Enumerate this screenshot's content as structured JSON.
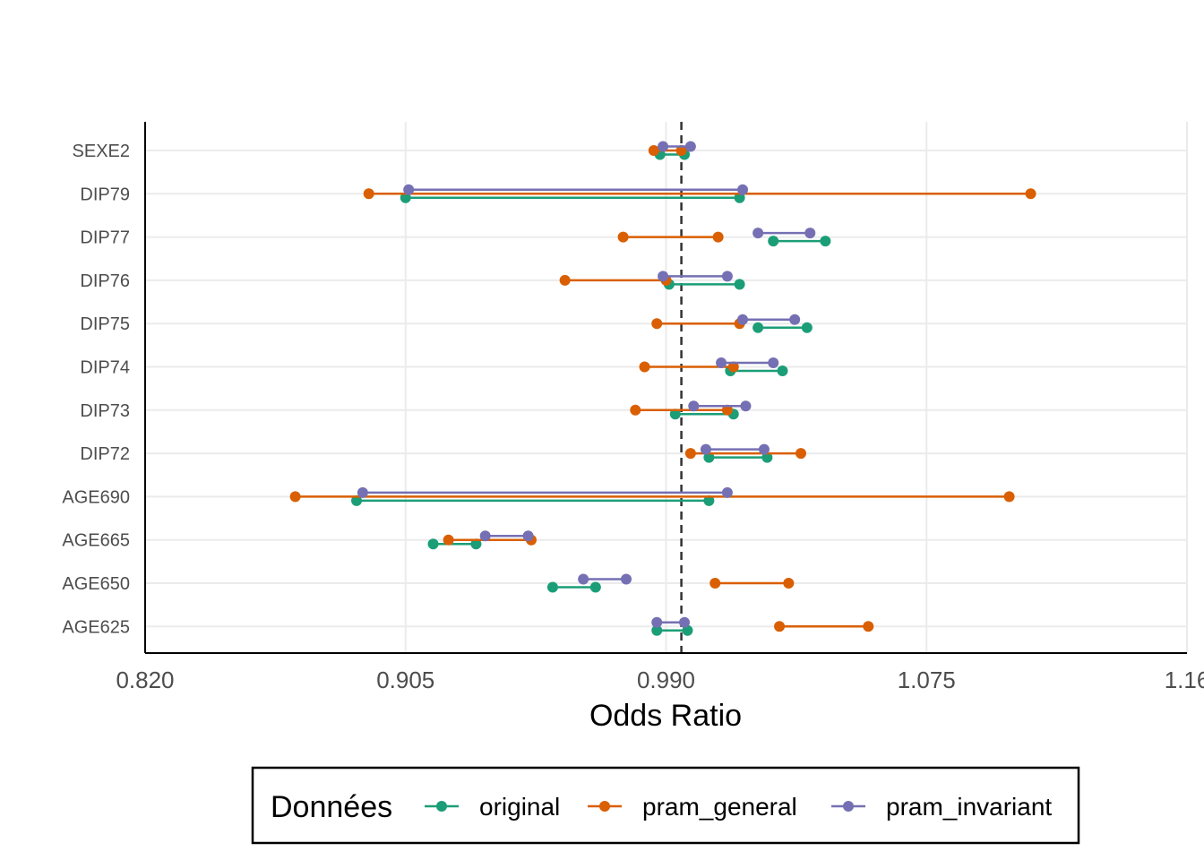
{
  "chart_data": {
    "type": "dumbbell",
    "xlabel": "Odds Ratio",
    "x_ticks": [
      "0.820",
      "0.905",
      "0.990",
      "1.075",
      "1.16"
    ],
    "xlim": [
      0.82,
      1.16
    ],
    "reference_line": 0.995,
    "categories": [
      "SEXE2",
      "DIP79",
      "DIP77",
      "DIP76",
      "DIP75",
      "DIP74",
      "DIP73",
      "DIP72",
      "AGE690",
      "AGE665",
      "AGE650",
      "AGE625"
    ],
    "legend": {
      "title": "Données",
      "placement": "bottom"
    },
    "series": [
      {
        "name": "original",
        "color": "#1b9e77",
        "intervals": [
          [
            0.988,
            0.996
          ],
          [
            0.905,
            1.014
          ],
          [
            1.025,
            1.042
          ],
          [
            0.991,
            1.014
          ],
          [
            1.02,
            1.036
          ],
          [
            1.011,
            1.028
          ],
          [
            0.993,
            1.012
          ],
          [
            1.004,
            1.023
          ],
          [
            0.889,
            1.004
          ],
          [
            0.914,
            0.928
          ],
          [
            0.953,
            0.967
          ],
          [
            0.987,
            0.997
          ]
        ]
      },
      {
        "name": "pram_general",
        "color": "#d95f02",
        "intervals": [
          [
            0.986,
            0.995
          ],
          [
            0.893,
            1.109
          ],
          [
            0.976,
            1.007
          ],
          [
            0.957,
            0.99
          ],
          [
            0.987,
            1.014
          ],
          [
            0.983,
            1.012
          ],
          [
            0.98,
            1.01
          ],
          [
            0.998,
            1.034
          ],
          [
            0.869,
            1.102
          ],
          [
            0.919,
            0.946
          ],
          [
            1.006,
            1.03
          ],
          [
            1.027,
            1.056
          ]
        ]
      },
      {
        "name": "pram_invariant",
        "color": "#7570b3",
        "intervals": [
          [
            0.989,
            0.998
          ],
          [
            0.906,
            1.015
          ],
          [
            1.02,
            1.037
          ],
          [
            0.989,
            1.01
          ],
          [
            1.015,
            1.032
          ],
          [
            1.008,
            1.025
          ],
          [
            0.999,
            1.016
          ],
          [
            1.003,
            1.022
          ],
          [
            0.891,
            1.01
          ],
          [
            0.931,
            0.945
          ],
          [
            0.963,
            0.977
          ],
          [
            0.987,
            0.996
          ]
        ]
      }
    ]
  }
}
